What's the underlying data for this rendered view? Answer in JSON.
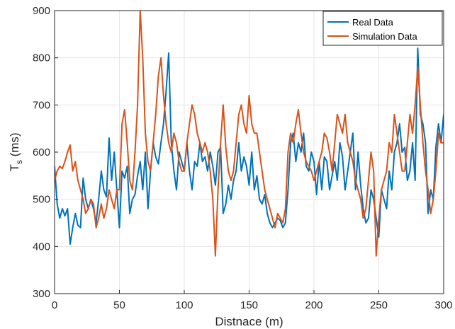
{
  "chart_data": {
    "type": "line",
    "xlabel": "Distnace (m)",
    "ylabel": "T",
    "ylabel_subscript": "s",
    "ylabel_unit": " (ms)",
    "xlim": [
      0,
      300
    ],
    "ylim": [
      300,
      900
    ],
    "xticks": [
      0,
      50,
      100,
      150,
      200,
      250,
      300
    ],
    "yticks": [
      300,
      400,
      500,
      600,
      700,
      800,
      900
    ],
    "grid": true,
    "legend_position": "top-right",
    "series": [
      {
        "name": "Real Data",
        "color": "#0072BD",
        "x": [
          0,
          2,
          4,
          6,
          8,
          10,
          12,
          14,
          16,
          18,
          20,
          22,
          24,
          26,
          28,
          30,
          32,
          34,
          36,
          38,
          40,
          42,
          44,
          46,
          48,
          50,
          52,
          54,
          56,
          58,
          60,
          62,
          64,
          66,
          68,
          70,
          72,
          74,
          76,
          78,
          80,
          82,
          84,
          86,
          88,
          90,
          92,
          94,
          96,
          98,
          100,
          102,
          104,
          106,
          108,
          110,
          112,
          114,
          116,
          118,
          120,
          122,
          124,
          126,
          128,
          130,
          132,
          134,
          136,
          138,
          140,
          142,
          144,
          146,
          148,
          150,
          152,
          154,
          156,
          158,
          160,
          162,
          164,
          166,
          168,
          170,
          172,
          174,
          176,
          178,
          180,
          182,
          184,
          186,
          188,
          190,
          192,
          194,
          196,
          198,
          200,
          202,
          204,
          206,
          208,
          210,
          212,
          214,
          216,
          218,
          220,
          222,
          224,
          226,
          228,
          230,
          232,
          234,
          236,
          238,
          240,
          242,
          244,
          246,
          248,
          250,
          252,
          254,
          256,
          258,
          260,
          262,
          264,
          266,
          268,
          270,
          272,
          274,
          276,
          278,
          280,
          282,
          284,
          286,
          288,
          290,
          292,
          294,
          296,
          298,
          300
        ],
        "y": [
          570,
          490,
          460,
          480,
          465,
          480,
          405,
          440,
          470,
          445,
          440,
          545,
          500,
          480,
          500,
          480,
          450,
          500,
          560,
          520,
          505,
          630,
          540,
          600,
          520,
          440,
          560,
          545,
          570,
          470,
          500,
          510,
          550,
          580,
          520,
          600,
          480,
          560,
          620,
          590,
          575,
          620,
          660,
          730,
          810,
          620,
          560,
          520,
          600,
          580,
          560,
          620,
          560,
          520,
          580,
          570,
          620,
          580,
          590,
          560,
          600,
          570,
          530,
          600,
          610,
          470,
          490,
          530,
          500,
          540,
          560,
          620,
          560,
          590,
          570,
          530,
          600,
          520,
          550,
          500,
          490,
          510,
          470,
          450,
          440,
          450,
          460,
          455,
          440,
          450,
          520,
          620,
          640,
          580,
          620,
          600,
          640,
          570,
          560,
          600,
          580,
          510,
          580,
          520,
          590,
          580,
          520,
          550,
          580,
          540,
          620,
          590,
          520,
          560,
          600,
          640,
          520,
          600,
          530,
          480,
          450,
          460,
          520,
          500,
          460,
          420,
          520,
          500,
          480,
          560,
          520,
          600,
          620,
          660,
          600,
          610,
          540,
          560,
          620,
          540,
          820,
          680,
          660,
          620,
          470,
          520,
          500,
          610,
          660,
          620,
          680
        ]
      },
      {
        "name": "Simulation Data",
        "color": "#D95319",
        "x": [
          0,
          2,
          4,
          6,
          8,
          10,
          12,
          14,
          16,
          18,
          20,
          22,
          24,
          26,
          28,
          30,
          32,
          34,
          36,
          38,
          40,
          42,
          44,
          46,
          48,
          50,
          52,
          54,
          56,
          58,
          60,
          62,
          64,
          66,
          68,
          70,
          72,
          74,
          76,
          78,
          80,
          82,
          84,
          86,
          88,
          90,
          92,
          94,
          96,
          98,
          100,
          102,
          104,
          106,
          108,
          110,
          112,
          114,
          116,
          118,
          120,
          122,
          124,
          126,
          128,
          130,
          132,
          134,
          136,
          138,
          140,
          142,
          144,
          146,
          148,
          150,
          152,
          154,
          156,
          158,
          160,
          162,
          164,
          166,
          168,
          170,
          172,
          174,
          176,
          178,
          180,
          182,
          184,
          186,
          188,
          190,
          192,
          194,
          196,
          198,
          200,
          202,
          204,
          206,
          208,
          210,
          212,
          214,
          216,
          218,
          220,
          222,
          224,
          226,
          228,
          230,
          232,
          234,
          236,
          238,
          240,
          242,
          244,
          246,
          248,
          250,
          252,
          254,
          256,
          258,
          260,
          262,
          264,
          266,
          268,
          270,
          272,
          274,
          276,
          278,
          280,
          282,
          284,
          286,
          288,
          290,
          292,
          294,
          296,
          298,
          300
        ],
        "y": [
          540,
          560,
          570,
          565,
          580,
          600,
          615,
          560,
          580,
          540,
          520,
          500,
          470,
          480,
          500,
          490,
          440,
          460,
          490,
          460,
          480,
          520,
          500,
          480,
          520,
          520,
          660,
          690,
          620,
          540,
          520,
          600,
          700,
          900,
          800,
          640,
          580,
          560,
          620,
          680,
          760,
          800,
          720,
          660,
          620,
          600,
          640,
          620,
          580,
          560,
          560,
          620,
          660,
          700,
          680,
          640,
          620,
          600,
          620,
          600,
          560,
          500,
          380,
          520,
          620,
          700,
          610,
          560,
          540,
          560,
          620,
          680,
          700,
          660,
          640,
          720,
          660,
          640,
          640,
          600,
          560,
          520,
          500,
          480,
          460,
          440,
          470,
          460,
          450,
          480,
          600,
          640,
          620,
          660,
          690,
          640,
          600,
          580,
          570,
          560,
          540,
          560,
          580,
          600,
          640,
          630,
          600,
          560,
          620,
          680,
          660,
          640,
          680,
          620,
          600,
          580,
          540,
          520,
          500,
          460,
          480,
          540,
          600,
          560,
          380,
          460,
          520,
          540,
          560,
          620,
          600,
          680,
          640,
          600,
          560,
          560,
          620,
          680,
          640,
          700,
          780,
          700,
          620,
          560,
          520,
          470,
          500,
          560,
          640,
          620,
          620
        ]
      }
    ]
  }
}
